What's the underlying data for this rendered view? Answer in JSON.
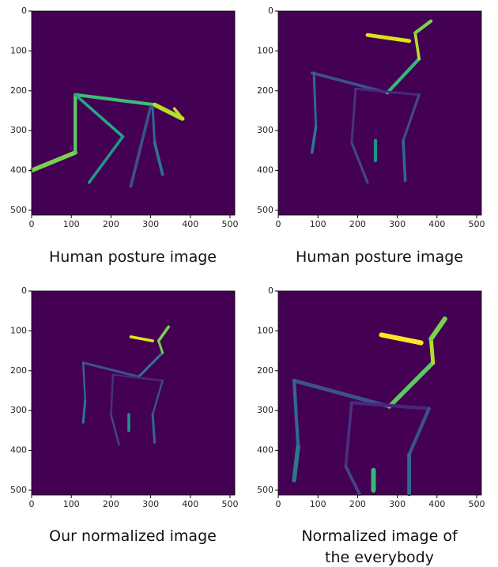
{
  "panels": [
    {
      "caption": "Human posture image",
      "xlim": [
        0,
        512
      ],
      "ylim": [
        0,
        512
      ],
      "xticks": [
        0,
        100,
        200,
        300,
        400,
        500
      ],
      "yticks": [
        0,
        100,
        200,
        300,
        400,
        500
      ]
    },
    {
      "caption": "Human posture image",
      "xlim": [
        0,
        512
      ],
      "ylim": [
        0,
        512
      ],
      "xticks": [
        0,
        100,
        200,
        300,
        400,
        500
      ],
      "yticks": [
        0,
        100,
        200,
        300,
        400,
        500
      ]
    },
    {
      "caption": "Our normalized image",
      "xlim": [
        0,
        512
      ],
      "ylim": [
        0,
        512
      ],
      "xticks": [
        0,
        100,
        200,
        300,
        400,
        500
      ],
      "yticks": [
        0,
        100,
        200,
        300,
        400,
        500
      ]
    },
    {
      "caption": "Normalized image of\nthe everybody",
      "xlim": [
        0,
        512
      ],
      "ylim": [
        0,
        512
      ],
      "xticks": [
        0,
        100,
        200,
        300,
        400,
        500
      ],
      "yticks": [
        0,
        100,
        200,
        300,
        400,
        500
      ]
    }
  ]
}
